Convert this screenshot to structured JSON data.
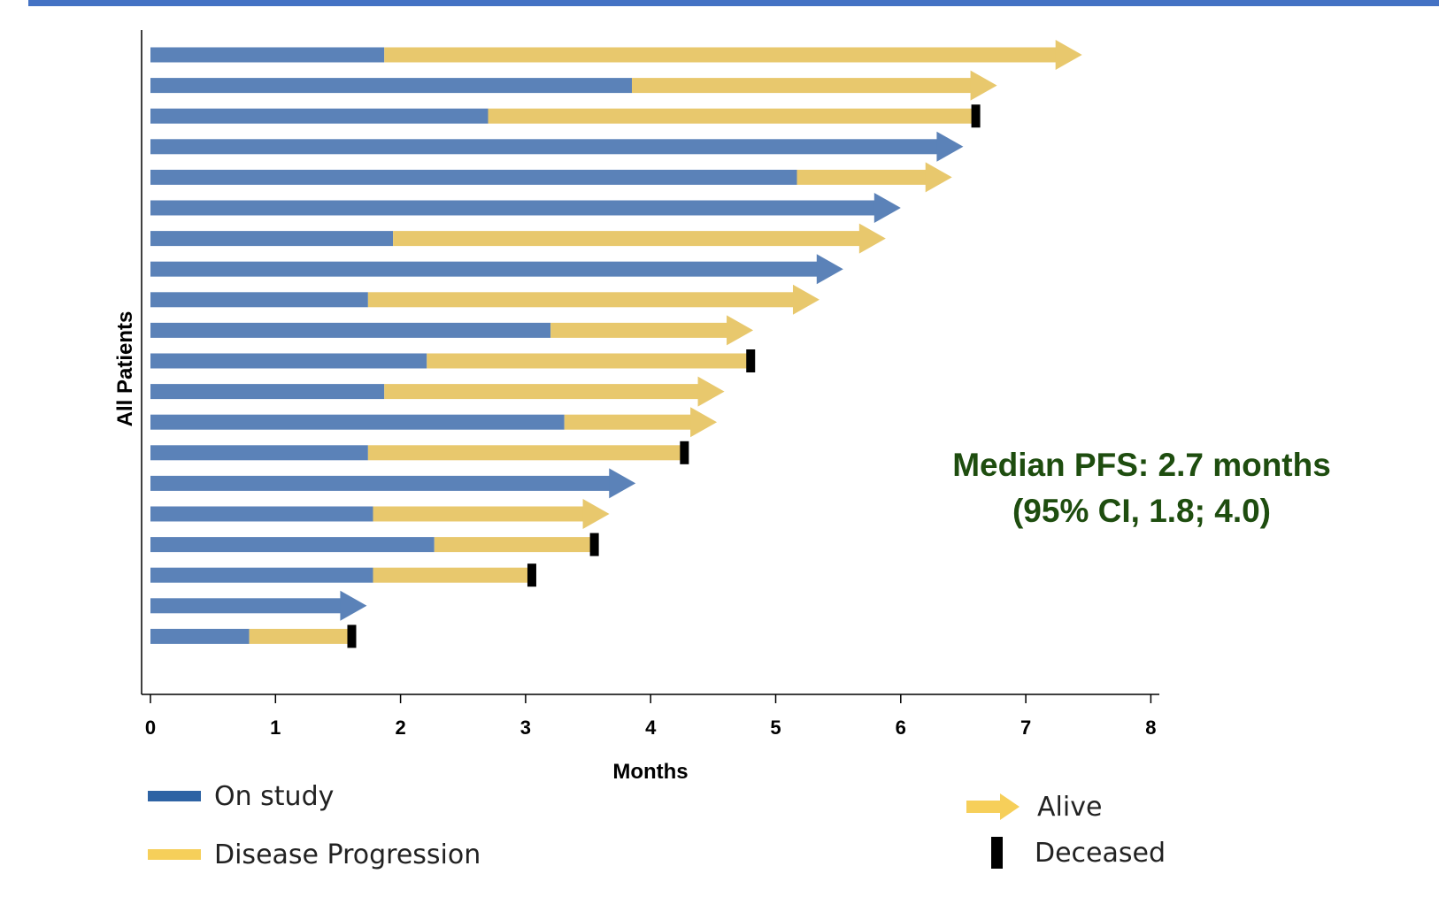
{
  "chart_data": {
    "type": "swimmer",
    "xlabel": "Months",
    "ylabel": "All Patients",
    "xlim": [
      0,
      8
    ],
    "xticks": [
      "0",
      "1",
      "2",
      "3",
      "4",
      "5",
      "6",
      "7",
      "8"
    ],
    "grid": false,
    "colors": {
      "on_study": "#5b82b8",
      "progression": "#e8c86d",
      "alive_arrow": "#f6cf5a",
      "deceased": "#000000",
      "axis": "#000000"
    },
    "patients": [
      {
        "on_study": 1.87,
        "end": 7.45,
        "status": "alive"
      },
      {
        "on_study": 3.85,
        "end": 6.77,
        "status": "alive"
      },
      {
        "on_study": 2.7,
        "end": 6.6,
        "status": "deceased"
      },
      {
        "on_study": 6.5,
        "end": 6.5,
        "status": "alive"
      },
      {
        "on_study": 5.17,
        "end": 6.41,
        "status": "alive"
      },
      {
        "on_study": 6.0,
        "end": 6.0,
        "status": "alive"
      },
      {
        "on_study": 1.94,
        "end": 5.88,
        "status": "alive"
      },
      {
        "on_study": 5.54,
        "end": 5.54,
        "status": "alive"
      },
      {
        "on_study": 1.74,
        "end": 5.35,
        "status": "alive"
      },
      {
        "on_study": 3.2,
        "end": 4.82,
        "status": "alive"
      },
      {
        "on_study": 2.21,
        "end": 4.8,
        "status": "deceased"
      },
      {
        "on_study": 1.87,
        "end": 4.59,
        "status": "alive"
      },
      {
        "on_study": 3.31,
        "end": 4.53,
        "status": "alive"
      },
      {
        "on_study": 1.74,
        "end": 4.27,
        "status": "deceased"
      },
      {
        "on_study": 3.88,
        "end": 3.88,
        "status": "alive"
      },
      {
        "on_study": 1.78,
        "end": 3.67,
        "status": "alive"
      },
      {
        "on_study": 2.27,
        "end": 3.55,
        "status": "deceased"
      },
      {
        "on_study": 1.78,
        "end": 3.05,
        "status": "deceased"
      },
      {
        "on_study": 1.73,
        "end": 1.73,
        "status": "alive"
      },
      {
        "on_study": 0.79,
        "end": 1.61,
        "status": "deceased"
      }
    ],
    "annotation": {
      "line1": "Median PFS: 2.7 months",
      "line2": "(95% CI, 1.8; 4.0)"
    }
  },
  "legend": {
    "on_study": "On study",
    "progression": "Disease Progression",
    "alive": "Alive",
    "deceased": "Deceased"
  }
}
